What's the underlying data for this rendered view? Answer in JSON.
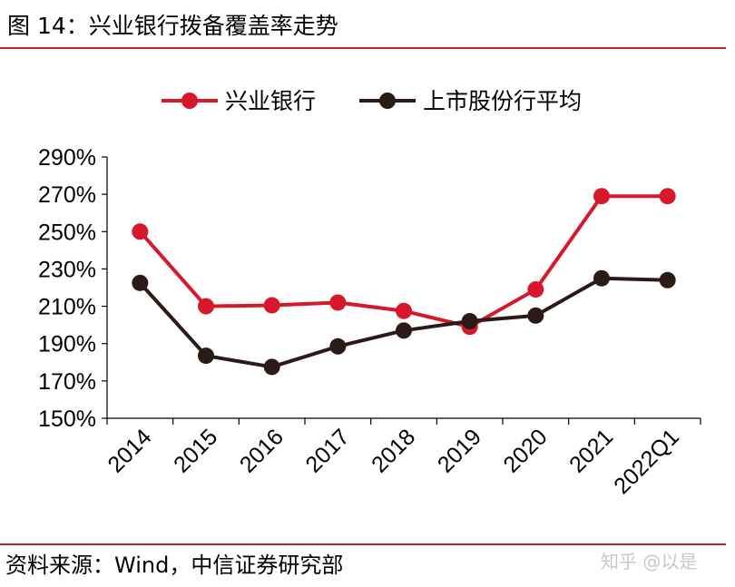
{
  "header": {
    "title": "图 14：兴业银行拨备覆盖率走势"
  },
  "footer": {
    "source": "资料来源：Wind，中信证券研究部",
    "watermark": "知乎 @以是"
  },
  "colors": {
    "rule": "#b8292f",
    "series_1": "#d7182a",
    "series_2": "#2b1a17",
    "axis": "#000000"
  },
  "chart_data": {
    "type": "line",
    "title": "",
    "xlabel": "",
    "ylabel": "",
    "categories": [
      "2014",
      "2015",
      "2016",
      "2017",
      "2018",
      "2019",
      "2020",
      "2021",
      "2022Q1"
    ],
    "y_ticks": [
      1.5,
      1.7,
      1.9,
      2.1,
      2.3,
      2.5,
      2.7,
      2.9
    ],
    "y_tick_labels": [
      "150%",
      "170%",
      "190%",
      "210%",
      "230%",
      "250%",
      "270%",
      "290%"
    ],
    "ylim": [
      1.5,
      2.9
    ],
    "grid": false,
    "legend_position": "top-center",
    "series": [
      {
        "name": "兴业银行",
        "values": [
          2.5,
          2.1,
          2.105,
          2.12,
          2.075,
          1.99,
          2.19,
          2.69,
          2.69
        ]
      },
      {
        "name": "上市股份行平均",
        "values": [
          2.225,
          1.835,
          1.775,
          1.885,
          1.97,
          2.02,
          2.05,
          2.25,
          2.24
        ]
      }
    ]
  }
}
